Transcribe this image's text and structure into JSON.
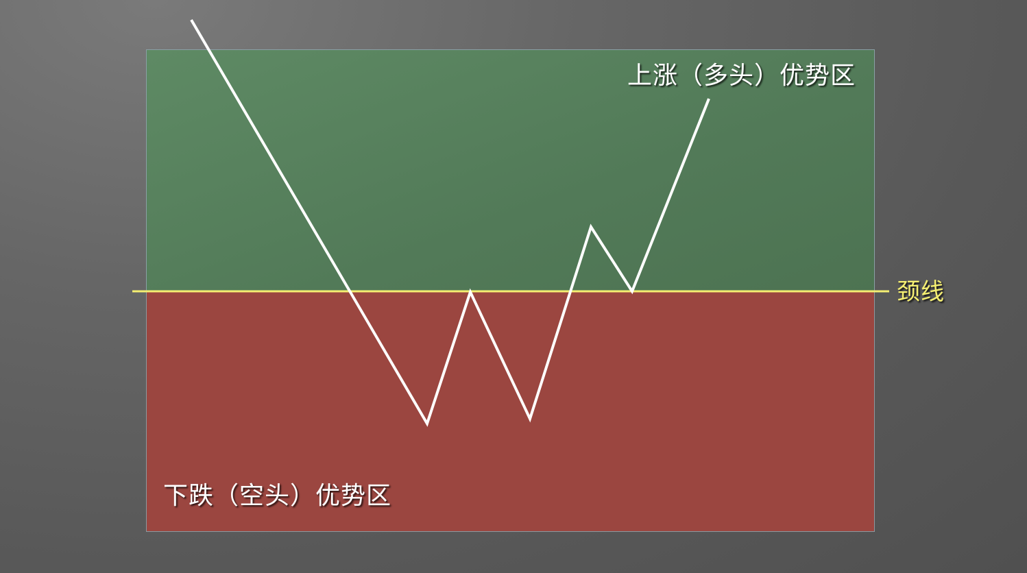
{
  "zones": {
    "bull_label": "上涨（多头）优势区",
    "bear_label": "下跌（空头）优势区"
  },
  "neckline": {
    "label": "颈线",
    "color": "#f5ef72"
  },
  "colors": {
    "bull_zone": "#557f5b",
    "bear_zone": "#9b4640",
    "price_line": "#ffffff",
    "background": "#5f5f5f"
  }
}
